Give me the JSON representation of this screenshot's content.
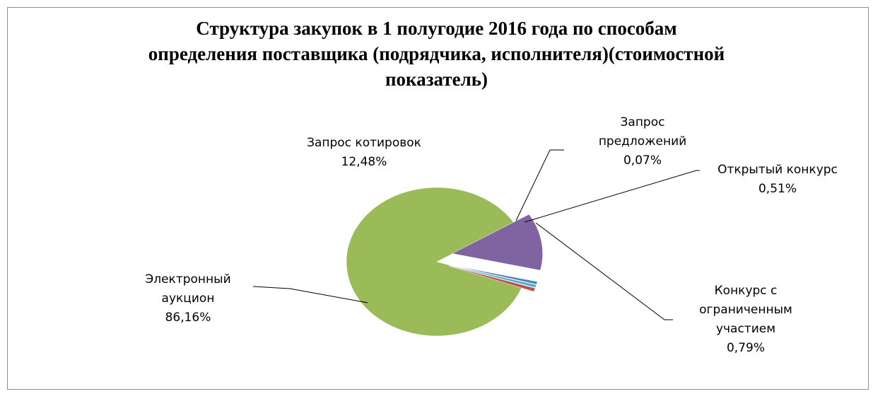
{
  "chart_data": {
    "type": "pie",
    "title": [
      "Структура закупок в 1 полугодие 2016 года по способам",
      "определения поставщика (подрядчика, исполнителя)(стоимостной",
      "показатель)"
    ],
    "slices": [
      {
        "name": [
          "Электронный",
          "аукцион"
        ],
        "value": 86.16,
        "label": "86,16%",
        "color": "#9bbb59"
      },
      {
        "name": [
          "Запрос котировок"
        ],
        "value": 12.48,
        "label": "12,48%",
        "color": "#8064a2"
      },
      {
        "name": [
          "Запрос",
          "предложений"
        ],
        "value": 0.07,
        "label": "0,07%",
        "color": "#4f81bd"
      },
      {
        "name": [
          "Открытый конкурс"
        ],
        "value": 0.51,
        "label": "0,51%",
        "color": "#4bacc6"
      },
      {
        "name": [
          "Конкурс с",
          "ограниченным",
          "участием"
        ],
        "value": 0.79,
        "label": "0,79%",
        "color": "#c0504d"
      }
    ]
  }
}
